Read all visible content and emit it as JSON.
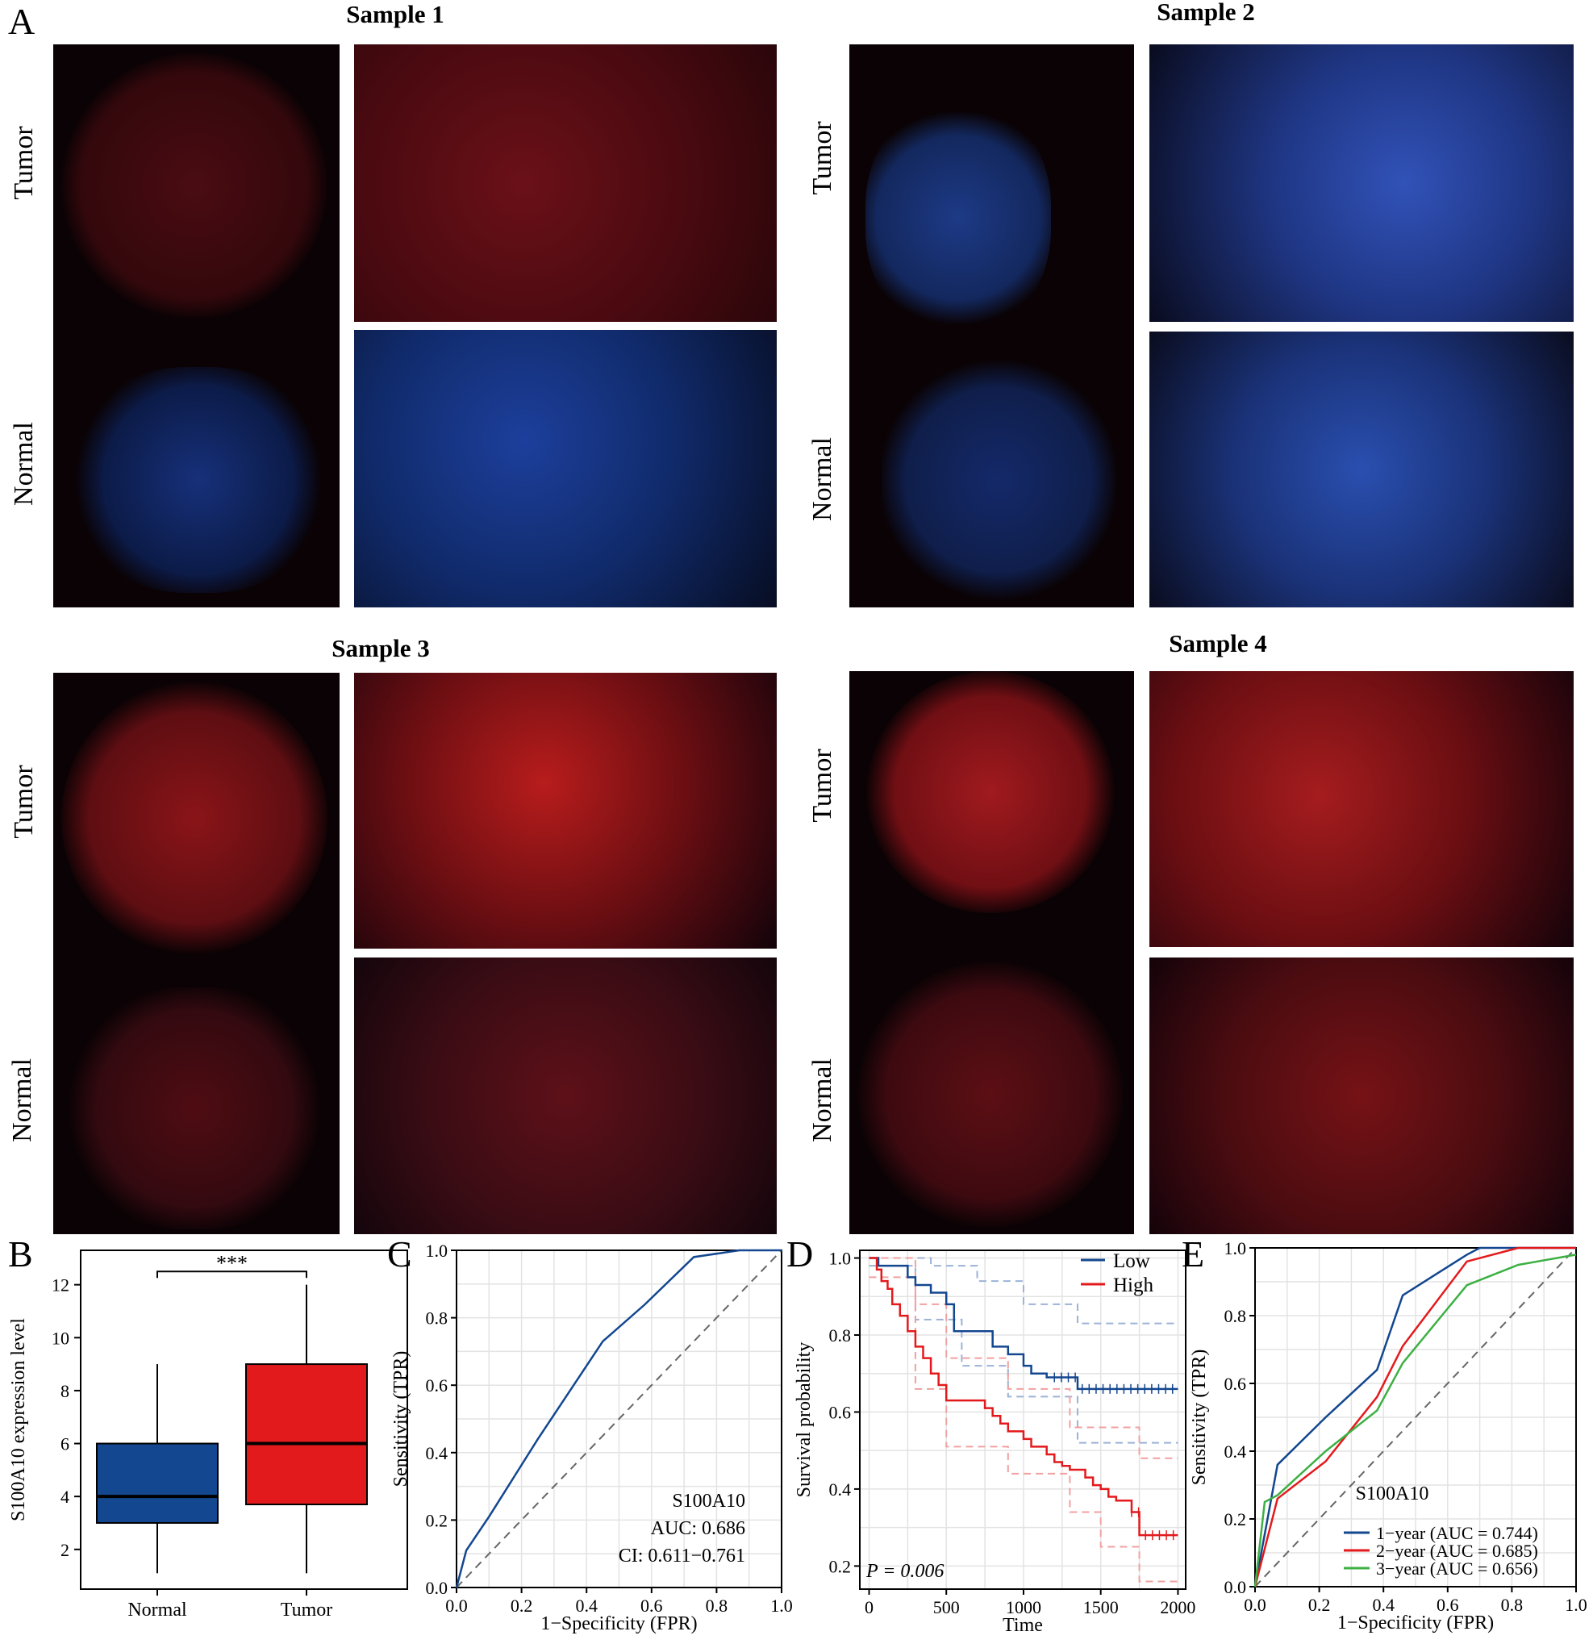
{
  "panel_letters": {
    "a": "A",
    "b": "B",
    "c": "C",
    "d": "D",
    "e": "E"
  },
  "samples": [
    {
      "title": "Sample 1"
    },
    {
      "title": "Sample 2"
    },
    {
      "title": "Sample 3"
    },
    {
      "title": "Sample 4"
    }
  ],
  "row_labels": {
    "tumor": "Tumor",
    "normal": "Normal"
  },
  "microscopy_palette": {
    "background": "#0a0204",
    "s1_tumor": "#c01818",
    "s1_normal": "#2b5bd6",
    "s2_tumor": "#3a63d0",
    "s2_normal": "#2c55c4",
    "s3_tumor": "#e02222",
    "s3_normal": "#b81a1a",
    "s4_tumor": "#e02525",
    "s4_normal": "#c41c1c"
  },
  "chart_data": [
    {
      "panel": "B",
      "type": "box",
      "ylabel": "S100A10 expression level",
      "categories": [
        "Normal",
        "Tumor"
      ],
      "y_ticks": [
        "2",
        "4",
        "6",
        "8",
        "10",
        "12"
      ],
      "ylim": [
        0.5,
        13.3
      ],
      "boxes": [
        {
          "name": "Normal",
          "whisker_low": 1.1,
          "q1": 3.0,
          "median": 4.0,
          "q3": 6.0,
          "whisker_high": 9.0,
          "color": "#13478f"
        },
        {
          "name": "Tumor",
          "whisker_low": 1.1,
          "q1": 3.7,
          "median": 6.0,
          "q3": 9.0,
          "whisker_high": 12.0,
          "color": "#e31a1c"
        }
      ],
      "significance": "***"
    },
    {
      "panel": "C",
      "type": "line",
      "xlabel": "1−Specificity (FPR)",
      "ylabel": "Sensitivity (TPR)",
      "x_ticks": [
        "0.0",
        "0.2",
        "0.4",
        "0.6",
        "0.8",
        "1.0"
      ],
      "y_ticks": [
        "0.0",
        "0.2",
        "0.4",
        "0.6",
        "0.8",
        "1.0"
      ],
      "xlim": [
        0,
        1
      ],
      "ylim": [
        0,
        1
      ],
      "series": [
        {
          "color": "#13478f",
          "x": [
            0,
            0.03,
            0.1,
            0.25,
            0.45,
            0.58,
            0.73,
            0.87,
            1.0
          ],
          "y": [
            0,
            0.11,
            0.21,
            0.44,
            0.73,
            0.84,
            0.98,
            1.0,
            1.0
          ]
        }
      ],
      "diagonal": true,
      "annotations": [
        "S100A10",
        "AUC: 0.686",
        "CI: 0.611−0.761"
      ]
    },
    {
      "panel": "D",
      "type": "line",
      "xlabel": "Time",
      "ylabel": "Survival probability",
      "x_ticks": [
        "0",
        "500",
        "1000",
        "1500",
        "2000"
      ],
      "y_ticks": [
        "0.2",
        "0.4",
        "0.6",
        "0.8",
        "1.0"
      ],
      "xlim": [
        -60,
        2050
      ],
      "ylim": [
        0.14,
        1.02
      ],
      "pvalue": "P = 0.006",
      "legend": [
        "Low",
        "High"
      ],
      "series": [
        {
          "name": "Low",
          "color": "#13478f",
          "x": [
            0,
            60,
            200,
            250,
            300,
            400,
            500,
            550,
            750,
            800,
            850,
            900,
            1000,
            1050,
            1100,
            1150,
            1200,
            1350,
            2000
          ],
          "y": [
            1.0,
            0.98,
            0.98,
            0.95,
            0.93,
            0.91,
            0.88,
            0.81,
            0.81,
            0.77,
            0.77,
            0.75,
            0.72,
            0.7,
            0.7,
            0.69,
            0.69,
            0.66,
            0.66
          ]
        },
        {
          "name": "High",
          "color": "#e31a1c",
          "x": [
            0,
            50,
            80,
            120,
            150,
            200,
            250,
            300,
            350,
            400,
            450,
            500,
            700,
            750,
            800,
            850,
            900,
            1000,
            1050,
            1100,
            1150,
            1200,
            1250,
            1300,
            1350,
            1400,
            1450,
            1500,
            1550,
            1600,
            1650,
            1700,
            1750,
            2000
          ],
          "y": [
            1.0,
            0.97,
            0.94,
            0.92,
            0.88,
            0.85,
            0.81,
            0.77,
            0.74,
            0.7,
            0.67,
            0.63,
            0.63,
            0.61,
            0.59,
            0.57,
            0.55,
            0.53,
            0.51,
            0.51,
            0.49,
            0.47,
            0.46,
            0.45,
            0.45,
            0.43,
            0.41,
            0.4,
            0.38,
            0.37,
            0.37,
            0.34,
            0.28,
            0.28
          ]
        }
      ],
      "ci_bands": [
        {
          "color": "#9cb2d6",
          "upper_x": [
            0,
            400,
            700,
            1000,
            1350,
            2000
          ],
          "upper_y": [
            1.0,
            0.98,
            0.94,
            0.88,
            0.83,
            0.83
          ],
          "lower_x": [
            0,
            300,
            600,
            900,
            1350,
            2000
          ],
          "lower_y": [
            0.98,
            0.84,
            0.72,
            0.64,
            0.52,
            0.52
          ]
        },
        {
          "color": "#f2a0a0",
          "upper_x": [
            0,
            300,
            500,
            900,
            1300,
            1750,
            2000
          ],
          "upper_y": [
            1.0,
            0.88,
            0.74,
            0.66,
            0.56,
            0.48,
            0.48
          ],
          "lower_x": [
            0,
            300,
            500,
            900,
            1300,
            1500,
            1750,
            2000
          ],
          "lower_y": [
            0.95,
            0.66,
            0.51,
            0.44,
            0.34,
            0.25,
            0.16,
            0.16
          ]
        }
      ]
    },
    {
      "panel": "E",
      "type": "line",
      "xlabel": "1−Specificity (FPR)",
      "ylabel": "Sensitivity (TPR)",
      "x_ticks": [
        "0.0",
        "0.2",
        "0.4",
        "0.6",
        "0.8",
        "1.0"
      ],
      "y_ticks": [
        "0.0",
        "0.2",
        "0.4",
        "0.6",
        "0.8",
        "1.0"
      ],
      "xlim": [
        0,
        1
      ],
      "ylim": [
        0,
        1
      ],
      "diagonal": true,
      "annotations": [
        "S100A10"
      ],
      "series": [
        {
          "name": "1−year (AUC = 0.744)",
          "color": "#13478f",
          "x": [
            0,
            0.07,
            0.22,
            0.38,
            0.46,
            0.66,
            0.7,
            1.0
          ],
          "y": [
            0,
            0.36,
            0.5,
            0.64,
            0.86,
            0.98,
            1.0,
            1.0
          ]
        },
        {
          "name": "2−year (AUC = 0.685)",
          "color": "#e31a1c",
          "x": [
            0,
            0.07,
            0.22,
            0.38,
            0.46,
            0.66,
            0.82,
            1.0
          ],
          "y": [
            0,
            0.26,
            0.37,
            0.56,
            0.71,
            0.96,
            1.0,
            1.0
          ]
        },
        {
          "name": "3−year (AUC = 0.656)",
          "color": "#3cb043",
          "x": [
            0,
            0.03,
            0.07,
            0.22,
            0.38,
            0.46,
            0.66,
            0.82,
            1.0
          ],
          "y": [
            0,
            0.25,
            0.27,
            0.4,
            0.52,
            0.66,
            0.89,
            0.95,
            0.98
          ]
        }
      ]
    }
  ]
}
